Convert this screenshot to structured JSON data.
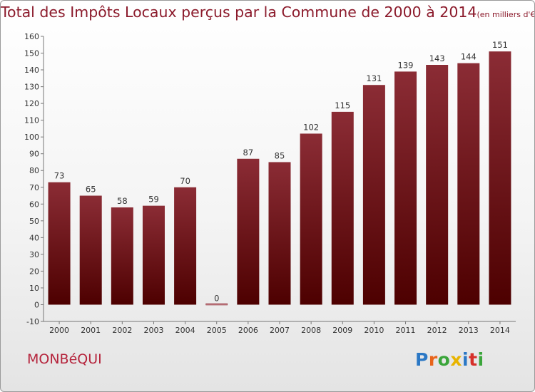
{
  "header": {
    "title": "Total des Impôts Locaux perçus par la Commune de 2000 à 2014",
    "unit": "(en milliers d'€)"
  },
  "commune_name": "MONBéQUI",
  "logo": {
    "text": "Proxiti",
    "letters": [
      {
        "char": "P",
        "color": "#2b78c5"
      },
      {
        "char": "r",
        "color": "#e8641b"
      },
      {
        "char": "o",
        "color": "#3aa53a"
      },
      {
        "char": "x",
        "color": "#e8b400"
      },
      {
        "char": "i",
        "color": "#2b78c5"
      },
      {
        "char": "t",
        "color": "#d6302a"
      },
      {
        "char": "i",
        "color": "#3aa53a"
      }
    ]
  },
  "colors": {
    "bar_top": "#8b2c35",
    "bar_bottom": "#4d0000",
    "title": "#8b1a2b",
    "commune": "#b5243c"
  },
  "chart_data": {
    "type": "bar",
    "categories": [
      "2000",
      "2001",
      "2002",
      "2003",
      "2004",
      "2005",
      "2006",
      "2007",
      "2008",
      "2009",
      "2010",
      "2011",
      "2012",
      "2013",
      "2014"
    ],
    "values": [
      73,
      65,
      58,
      59,
      70,
      0,
      87,
      85,
      102,
      115,
      131,
      139,
      143,
      144,
      151
    ],
    "ylim": [
      -10,
      160
    ],
    "yticks": [
      -10,
      0,
      10,
      20,
      30,
      40,
      50,
      60,
      70,
      80,
      90,
      100,
      110,
      120,
      130,
      140,
      150,
      160
    ],
    "grid": false,
    "data_labels": true
  }
}
